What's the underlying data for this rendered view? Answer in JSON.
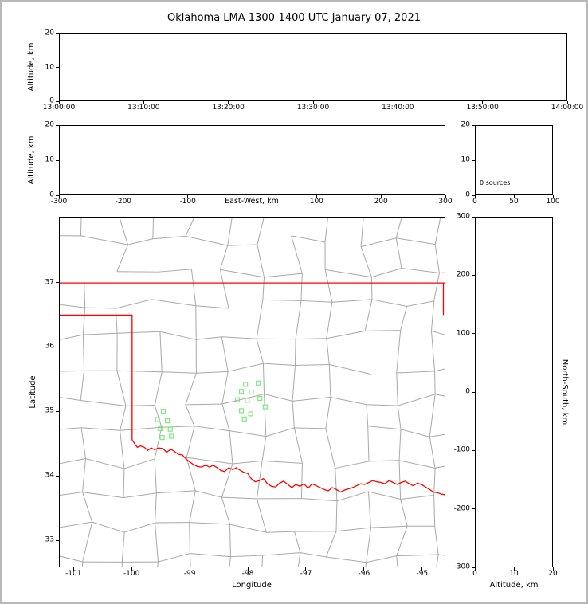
{
  "title": "Oklahoma LMA 1300-1400 UTC January 07, 2021",
  "colors": {
    "axis": "#000000",
    "county": "#a8a8a8",
    "state_border": "#ff0000",
    "station": "#7ce87c",
    "frame": "#b9b9b9"
  },
  "chart_data": [
    {
      "id": "time_height",
      "type": "scatter",
      "xlabel": "",
      "ylabel": "Altitude, km",
      "x_ticks": [
        "13:00:00",
        "13:10:00",
        "13:20:00",
        "13:30:00",
        "13:40:00",
        "13:50:00",
        "14:00:00"
      ],
      "y_ticks": [
        0,
        10,
        20
      ],
      "ylim": [
        0,
        20
      ],
      "points": []
    },
    {
      "id": "ew_height",
      "type": "scatter",
      "xlabel": "East-West, km",
      "ylabel": "Altitude, km",
      "xlim": [
        -300,
        300
      ],
      "x_ticks_shown": [
        -300,
        -200,
        -100,
        100,
        200,
        300
      ],
      "y_ticks": [
        0,
        10,
        20
      ],
      "ylim": [
        0,
        20
      ],
      "points": []
    },
    {
      "id": "alt_histogram",
      "type": "line",
      "annotation": "0 sources",
      "xlim": [
        0,
        100
      ],
      "x_ticks": [
        0,
        50,
        100
      ],
      "y_ticks": [
        0,
        10,
        20
      ],
      "ylim": [
        0,
        20
      ],
      "points": []
    },
    {
      "id": "plan_view_map",
      "type": "scatter",
      "xlabel": "Longitude",
      "ylabel": "Latitude",
      "xlim": [
        -101.25,
        -94.6
      ],
      "ylim": [
        32.58,
        38.02
      ],
      "x_ticks": [
        -101,
        -100,
        -99,
        -98,
        -97,
        -96,
        -95
      ],
      "y_ticks": [
        33,
        34,
        35,
        36,
        37
      ],
      "counties": {
        "style": "irregular county lattice",
        "color": "#a8a8a8"
      },
      "stations": [
        [
          -97.82,
          35.44
        ],
        [
          -98.04,
          35.42
        ],
        [
          -98.11,
          35.31
        ],
        [
          -97.94,
          35.3
        ],
        [
          -98.18,
          35.18
        ],
        [
          -98.01,
          35.17
        ],
        [
          -97.79,
          35.2
        ],
        [
          -97.7,
          35.07
        ],
        [
          -98.11,
          35.01
        ],
        [
          -97.95,
          34.96
        ],
        [
          -98.06,
          34.88
        ],
        [
          -99.46,
          35.0
        ],
        [
          -99.56,
          34.87
        ],
        [
          -99.39,
          34.85
        ],
        [
          -99.51,
          34.73
        ],
        [
          -99.34,
          34.72
        ],
        [
          -99.48,
          34.59
        ],
        [
          -99.32,
          34.61
        ]
      ],
      "state_borders": [
        [
          [
            -101.25,
            37.0
          ],
          [
            -94.6,
            37.0
          ]
        ],
        [
          [
            -94.62,
            37.0
          ],
          [
            -94.62,
            36.5
          ]
        ],
        [
          [
            -101.25,
            36.5
          ],
          [
            -100.0,
            36.5
          ],
          [
            -100.0,
            34.555
          ]
        ],
        [
          [
            -100.0,
            34.555
          ],
          [
            -99.96,
            34.5
          ],
          [
            -99.91,
            34.44
          ],
          [
            -99.85,
            34.46
          ],
          [
            -99.79,
            34.44
          ],
          [
            -99.73,
            34.39
          ],
          [
            -99.67,
            34.43
          ],
          [
            -99.61,
            34.4
          ],
          [
            -99.54,
            34.43
          ],
          [
            -99.47,
            34.42
          ],
          [
            -99.4,
            34.36
          ],
          [
            -99.33,
            34.41
          ],
          [
            -99.26,
            34.37
          ],
          [
            -99.2,
            34.33
          ],
          [
            -99.13,
            34.32
          ],
          [
            -99.06,
            34.25
          ],
          [
            -99.0,
            34.21
          ],
          [
            -98.94,
            34.17
          ],
          [
            -98.87,
            34.14
          ],
          [
            -98.8,
            34.13
          ],
          [
            -98.73,
            34.16
          ],
          [
            -98.66,
            34.13
          ],
          [
            -98.6,
            34.16
          ],
          [
            -98.53,
            34.12
          ],
          [
            -98.47,
            34.08
          ],
          [
            -98.4,
            34.06
          ],
          [
            -98.33,
            34.12
          ],
          [
            -98.26,
            34.09
          ],
          [
            -98.2,
            34.12
          ],
          [
            -98.13,
            34.08
          ],
          [
            -98.07,
            34.05
          ],
          [
            -98.0,
            34.03
          ],
          [
            -97.94,
            33.95
          ],
          [
            -97.87,
            33.9
          ],
          [
            -97.8,
            33.92
          ],
          [
            -97.73,
            33.95
          ],
          [
            -97.66,
            33.87
          ],
          [
            -97.59,
            33.83
          ],
          [
            -97.52,
            33.82
          ],
          [
            -97.45,
            33.88
          ],
          [
            -97.38,
            33.91
          ],
          [
            -97.31,
            33.86
          ],
          [
            -97.24,
            33.81
          ],
          [
            -97.17,
            33.86
          ],
          [
            -97.1,
            33.83
          ],
          [
            -97.03,
            33.87
          ],
          [
            -96.96,
            33.8
          ],
          [
            -96.89,
            33.87
          ],
          [
            -96.82,
            33.84
          ],
          [
            -96.75,
            33.81
          ],
          [
            -96.68,
            33.78
          ],
          [
            -96.61,
            33.76
          ],
          [
            -96.54,
            33.81
          ],
          [
            -96.47,
            33.78
          ],
          [
            -96.4,
            33.74
          ],
          [
            -96.33,
            33.77
          ],
          [
            -96.26,
            33.79
          ],
          [
            -96.19,
            33.81
          ],
          [
            -96.12,
            33.84
          ],
          [
            -96.05,
            33.87
          ],
          [
            -95.98,
            33.86
          ],
          [
            -95.91,
            33.89
          ],
          [
            -95.84,
            33.92
          ],
          [
            -95.77,
            33.9
          ],
          [
            -95.7,
            33.89
          ],
          [
            -95.63,
            33.87
          ],
          [
            -95.56,
            33.92
          ],
          [
            -95.49,
            33.89
          ],
          [
            -95.42,
            33.86
          ],
          [
            -95.35,
            33.89
          ],
          [
            -95.28,
            33.91
          ],
          [
            -95.21,
            33.87
          ],
          [
            -95.14,
            33.84
          ],
          [
            -95.07,
            33.88
          ],
          [
            -95.0,
            33.86
          ],
          [
            -94.93,
            33.82
          ],
          [
            -94.86,
            33.78
          ],
          [
            -94.79,
            33.74
          ],
          [
            -94.72,
            33.73
          ],
          [
            -94.66,
            33.71
          ],
          [
            -94.6,
            33.7
          ]
        ]
      ]
    },
    {
      "id": "ns_height",
      "type": "scatter",
      "xlabel": "Altitude, km",
      "ylabel": "North-South, km",
      "xlim": [
        0,
        20
      ],
      "x_ticks": [
        0,
        10,
        20
      ],
      "ylim": [
        -300,
        300
      ],
      "y_ticks": [
        300,
        200,
        100,
        0,
        -100,
        -200,
        -300
      ],
      "points": []
    }
  ]
}
